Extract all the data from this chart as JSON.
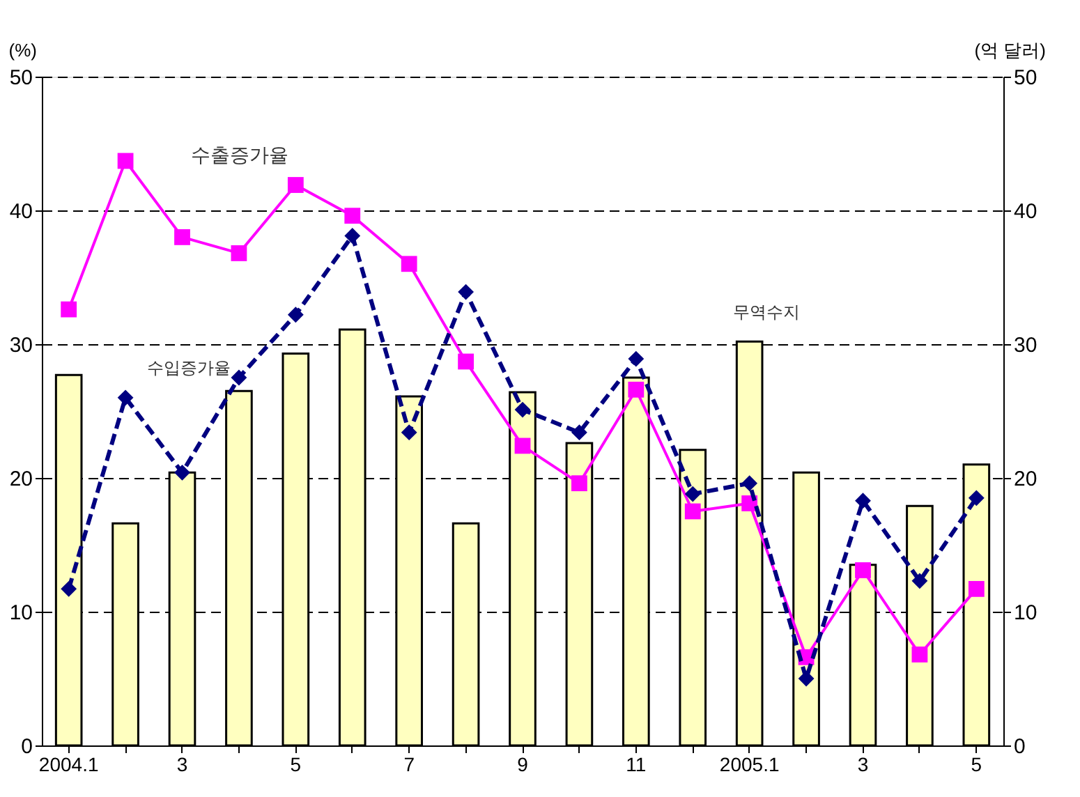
{
  "chart_data": {
    "type": "line",
    "ylabel": "(%)",
    "y2label": "(억 달러)",
    "categories": [
      "2004.1",
      null,
      "3",
      null,
      "5",
      null,
      "7",
      null,
      "9",
      null,
      "11",
      null,
      "2005.1",
      null,
      "3",
      null,
      "5"
    ],
    "series": [
      {
        "type": "bar",
        "name": "무역수지",
        "axis": "y2",
        "color": "#ffffc0",
        "values": [
          27.7,
          16.6,
          20.4,
          26.5,
          29.3,
          31.1,
          26.1,
          16.6,
          26.4,
          22.6,
          27.5,
          22.1,
          30.2,
          20.4,
          13.5,
          17.9,
          21.0
        ]
      },
      {
        "name": "수출증가율",
        "color": "#ff00ff",
        "marker": "square",
        "line_style": "solid",
        "values": [
          32.6,
          43.7,
          38.0,
          36.8,
          41.9,
          39.6,
          36.0,
          28.7,
          22.4,
          19.6,
          26.6,
          17.5,
          18.1,
          6.6,
          13.1,
          6.8,
          11.7
        ]
      },
      {
        "name": "수입증가율",
        "color": "#000080",
        "marker": "diamond",
        "line_style": "dashed",
        "values": [
          11.7,
          26.0,
          20.4,
          27.5,
          32.2,
          38.1,
          23.4,
          33.9,
          25.1,
          23.4,
          28.9,
          18.8,
          19.6,
          5.0,
          18.3,
          12.3,
          18.5
        ]
      }
    ],
    "ylim": [
      0,
      50
    ],
    "yticks": [
      0,
      10,
      20,
      30,
      40,
      50
    ],
    "y2lim": [
      0,
      50
    ],
    "y2ticks": [
      0,
      10,
      20,
      30,
      40,
      50
    ],
    "grid": "y"
  }
}
